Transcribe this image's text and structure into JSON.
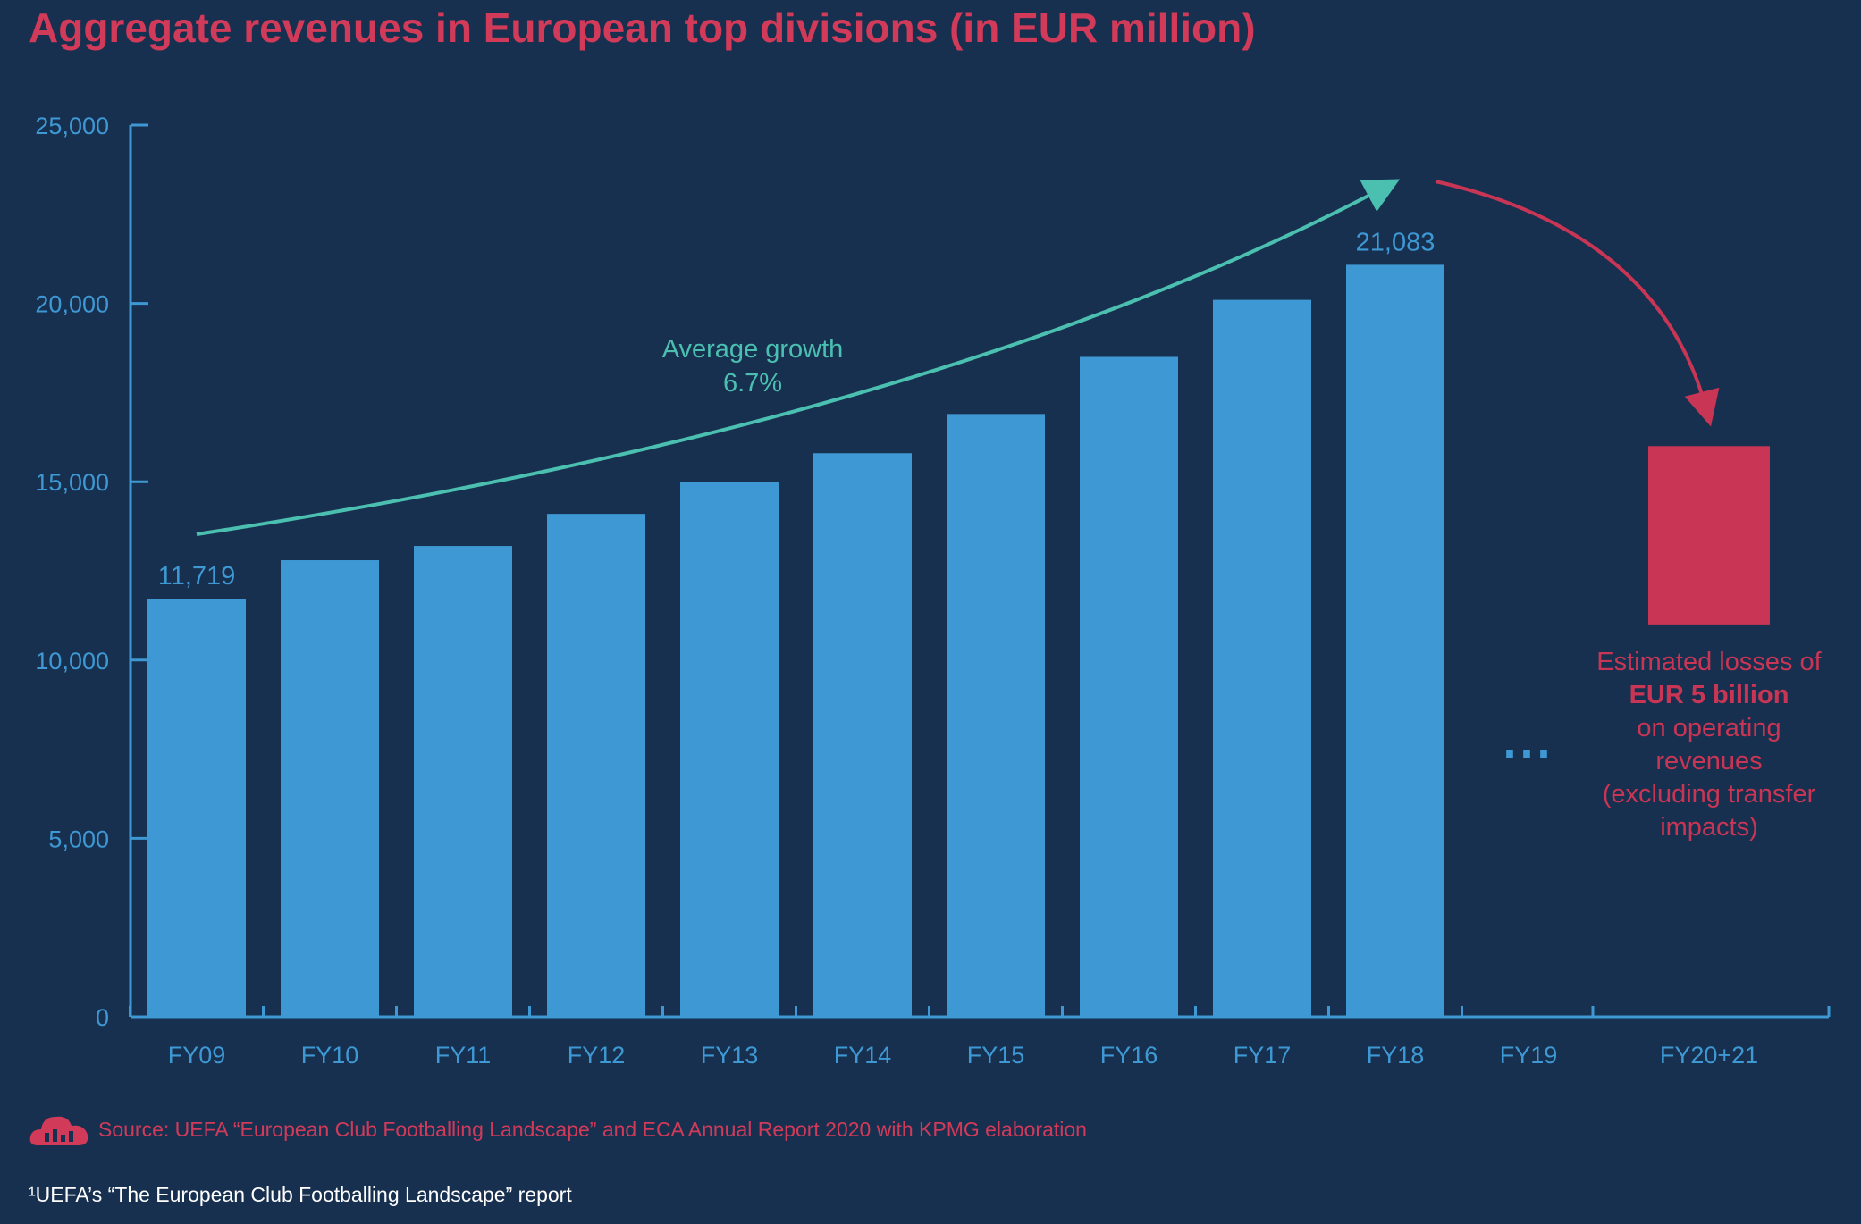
{
  "title": "Aggregate revenues in European top divisions (in EUR million)",
  "colors": {
    "background": "#17304f",
    "bar": "#3e98d3",
    "axis": "#3e98d3",
    "tick_label": "#3e98d3",
    "growth_arrow": "#4bbfb0",
    "loss": "#c93554",
    "title": "#d23a5a"
  },
  "chart_data": {
    "type": "bar",
    "categories": [
      "FY09",
      "FY10",
      "FY11",
      "FY12",
      "FY13",
      "FY14",
      "FY15",
      "FY16",
      "FY17",
      "FY18",
      "FY19",
      "FY20+21"
    ],
    "values": [
      11719,
      12800,
      13200,
      14100,
      15000,
      15800,
      16900,
      18500,
      20100,
      21083,
      null,
      null
    ],
    "ylim": [
      0,
      25000
    ],
    "yticks": [
      0,
      5000,
      10000,
      15000,
      20000,
      25000
    ],
    "ytick_labels": [
      "0",
      "5,000",
      "10,000",
      "15,000",
      "20,000",
      "25,000"
    ],
    "data_labels": [
      {
        "category": "FY09",
        "text": "11,719"
      },
      {
        "category": "FY18",
        "text": "21,083"
      }
    ],
    "loss_bar": {
      "category": "FY20+21",
      "from": 11000,
      "to": 16000
    },
    "growth_annotation": {
      "line1": "Average growth",
      "line2": "6.7%"
    },
    "ellipsis": {
      "category": "FY19",
      "text": "..."
    },
    "loss_annotation": {
      "line1": "Estimated losses of",
      "line2": "EUR 5 billion",
      "line3": "on operating",
      "line4": "revenues",
      "line5": "(excluding transfer",
      "line6": "impacts)"
    },
    "grid": false
  },
  "source": "Source: UEFA “European Club Footballing Landscape” and ECA Annual Report 2020 with KPMG elaboration",
  "footnote": "¹UEFA’s “The European Club Footballing Landscape” report"
}
